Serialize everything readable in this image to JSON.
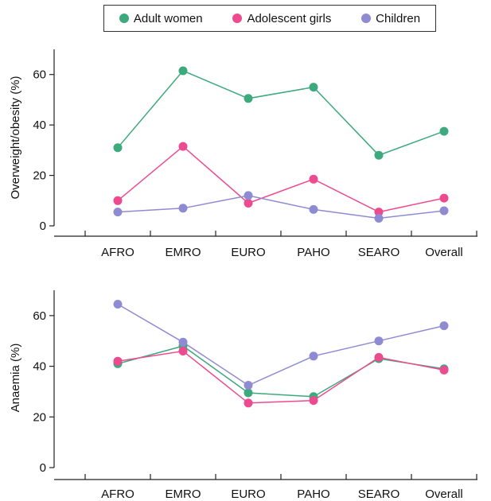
{
  "legend": [
    {
      "name": "Adult women",
      "color": "#3daa7e"
    },
    {
      "name": "Adolescent girls",
      "color": "#ee4a8f"
    },
    {
      "name": "Children",
      "color": "#8f8bd2"
    }
  ],
  "chart_data": [
    {
      "type": "line",
      "ylabel": "Overweight/obesity (%)",
      "categories": [
        "AFRO",
        "EMRO",
        "EURO",
        "PAHO",
        "SEARO",
        "Overall"
      ],
      "ylim": [
        0,
        70
      ],
      "yticks": [
        0,
        20,
        40,
        60
      ],
      "grid": false,
      "series": [
        {
          "name": "Adult women",
          "color": "#3daa7e",
          "values": [
            31,
            61.5,
            50.5,
            55,
            28,
            37.5
          ]
        },
        {
          "name": "Adolescent girls",
          "color": "#ee4a8f",
          "values": [
            10,
            31.5,
            9,
            18.5,
            5.5,
            11
          ]
        },
        {
          "name": "Children",
          "color": "#8f8bd2",
          "values": [
            5.5,
            7,
            12,
            6.5,
            3,
            6
          ]
        }
      ]
    },
    {
      "type": "line",
      "ylabel": "Anaemia (%)",
      "categories": [
        "AFRO",
        "EMRO",
        "EURO",
        "PAHO",
        "SEARO",
        "Overall"
      ],
      "ylim": [
        0,
        70
      ],
      "yticks": [
        0,
        20,
        40,
        60
      ],
      "grid": false,
      "series": [
        {
          "name": "Adult women",
          "color": "#3daa7e",
          "values": [
            41,
            48,
            29.5,
            28,
            43,
            39
          ]
        },
        {
          "name": "Adolescent girls",
          "color": "#ee4a8f",
          "values": [
            42,
            46,
            25.5,
            26.5,
            43.5,
            38.5
          ]
        },
        {
          "name": "Children",
          "color": "#8f8bd2",
          "values": [
            64.5,
            49.5,
            32.5,
            44,
            50,
            56
          ]
        }
      ]
    }
  ]
}
